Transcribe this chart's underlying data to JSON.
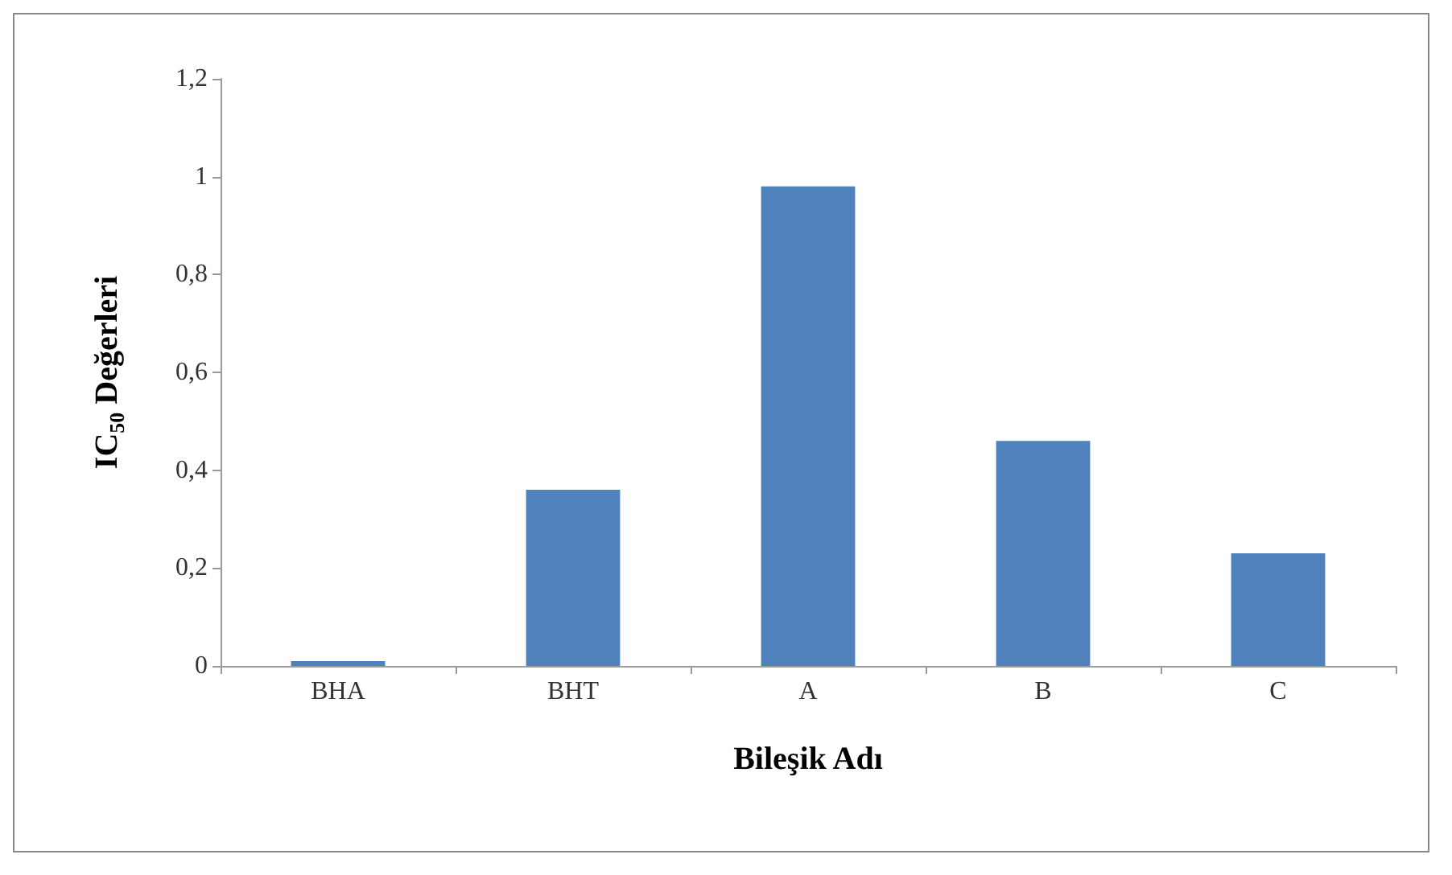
{
  "chart_data": {
    "type": "bar",
    "xlabel": "Bileşik Adı",
    "ylabel": "IC$_{50}$ Değerleri",
    "categories": [
      "BHA",
      "BHT",
      "A",
      "B",
      "C"
    ],
    "values": [
      0.01,
      0.36,
      0.98,
      0.46,
      0.23
    ],
    "color": "#4f81bd",
    "ylim": [
      0,
      1.2
    ],
    "yticks": [
      0,
      {
        "value": 0.2,
        "label": "0,2"
      },
      {
        "value": 0.4,
        "label": "0,4"
      },
      {
        "value": 0.6,
        "label": "0,6"
      },
      {
        "value": 0.8,
        "label": "0,8"
      },
      1,
      {
        "value": 1.2,
        "label": "1,2"
      }
    ],
    "grid": false
  }
}
